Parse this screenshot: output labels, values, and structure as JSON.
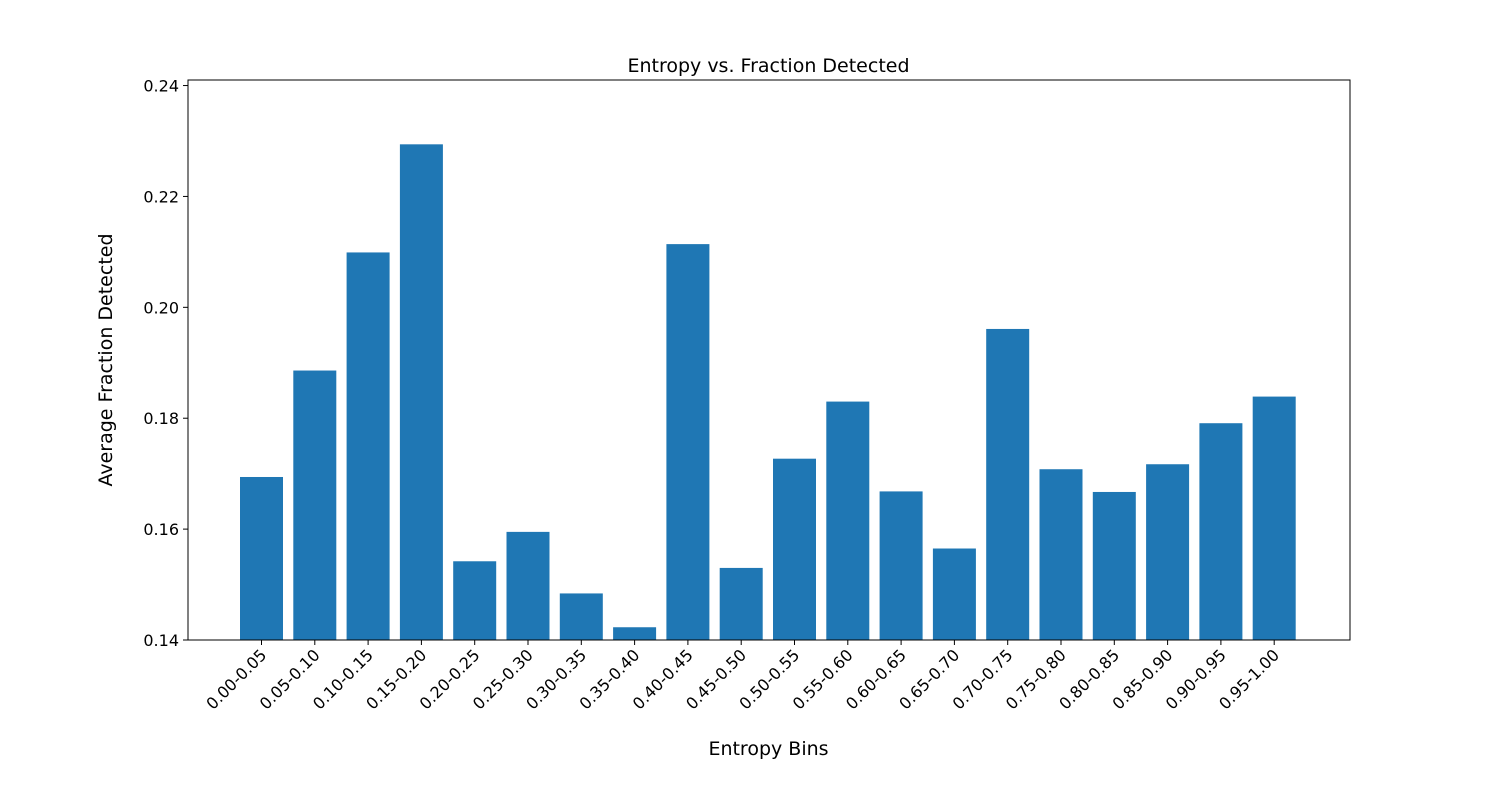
{
  "chart_data": {
    "type": "bar",
    "title": "Entropy vs. Fraction Detected",
    "xlabel": "Entropy Bins",
    "ylabel": "Average Fraction Detected",
    "categories": [
      "0.00-0.05",
      "0.05-0.10",
      "0.10-0.15",
      "0.15-0.20",
      "0.20-0.25",
      "0.25-0.30",
      "0.30-0.35",
      "0.35-0.40",
      "0.40-0.45",
      "0.45-0.50",
      "0.50-0.55",
      "0.55-0.60",
      "0.60-0.65",
      "0.65-0.70",
      "0.70-0.75",
      "0.75-0.80",
      "0.80-0.85",
      "0.85-0.90",
      "0.90-0.95",
      "0.95-1.00"
    ],
    "values": [
      0.1694,
      0.1886,
      0.2099,
      0.2294,
      0.1542,
      0.1595,
      0.1484,
      0.1423,
      0.2114,
      0.153,
      0.1727,
      0.183,
      0.1668,
      0.1565,
      0.1961,
      0.1708,
      0.1667,
      0.1717,
      0.1791,
      0.1839
    ],
    "ylim": [
      0.14,
      0.241
    ],
    "yticks": [
      "0.14",
      "0.16",
      "0.18",
      "0.20",
      "0.22",
      "0.24"
    ],
    "bar_color": "#1f77b4",
    "grid": false,
    "legend": "none"
  }
}
